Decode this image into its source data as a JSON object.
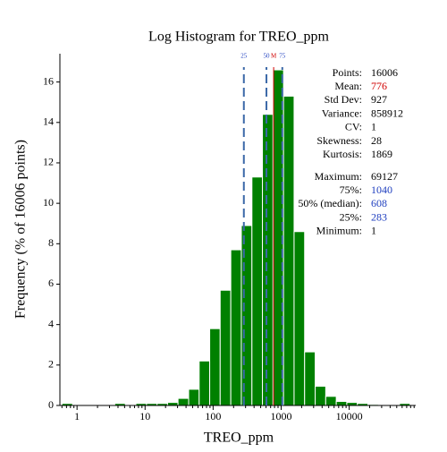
{
  "chart_data": {
    "type": "histogram",
    "title": "Log Histogram for TREO_ppm",
    "x_label": "TREO_ppm",
    "y_label": "Frequency (% of 16006 points)",
    "log_x": true,
    "color": "#008000",
    "bins": [
      0.6,
      0.86,
      1.23,
      1.76,
      2.51,
      3.59,
      5.13,
      7.33,
      10.5,
      15.0,
      21.4,
      30.5,
      43.7,
      62.4,
      89.1,
      127,
      182,
      260,
      372,
      531,
      759,
      1084,
      1549,
      2213,
      3162,
      4519,
      6457,
      9226,
      13180,
      18840,
      26920,
      38460,
      54950,
      78520
    ],
    "counts": [
      0.1,
      0,
      0,
      0,
      0,
      0.1,
      0,
      0.1,
      0.1,
      0.1,
      0.15,
      0.35,
      0.8,
      2.2,
      3.8,
      5.7,
      7.7,
      8.9,
      11.3,
      14.4,
      16.6,
      15.3,
      8.6,
      2.65,
      0.95,
      0.45,
      0.2,
      0.15,
      0.1,
      0.05,
      0,
      0,
      0.1
    ],
    "xlim": [
      0.56,
      95000
    ],
    "xticks": [
      1,
      10,
      100,
      1000,
      10000
    ],
    "ylim": [
      0,
      17.4
    ],
    "yticks": [
      0,
      2,
      4,
      6,
      8,
      10,
      12,
      14,
      16
    ],
    "markers": [
      {
        "label": "25",
        "value": 283,
        "color": "#1f3fbf"
      },
      {
        "label": "50",
        "value": 608,
        "color": "#1f3fbf"
      },
      {
        "label": "M",
        "value": 776,
        "color": "#d00000"
      },
      {
        "label": "75",
        "value": 1040,
        "color": "#1f3fbf"
      }
    ],
    "stats": [
      {
        "label": "Points:",
        "value": 16006
      },
      {
        "label": "Mean:",
        "value": 776,
        "color": "#d00000"
      },
      {
        "label": "Std Dev:",
        "value": 927
      },
      {
        "label": "Variance:",
        "value": 858912
      },
      {
        "label": "CV:",
        "value": 1
      },
      {
        "label": "Skewness:",
        "value": 28
      },
      {
        "label": "Kurtosis:",
        "value": 1869
      }
    ],
    "quantiles": [
      {
        "label": "Maximum:",
        "value": 69127
      },
      {
        "label": "75%:",
        "value": 1040,
        "color": "#1f3fbf"
      },
      {
        "label": "50% (median):",
        "value": 608,
        "color": "#1f3fbf"
      },
      {
        "label": "25%:",
        "value": 283,
        "color": "#1f3fbf"
      },
      {
        "label": "Minimum:",
        "value": 1
      }
    ]
  }
}
